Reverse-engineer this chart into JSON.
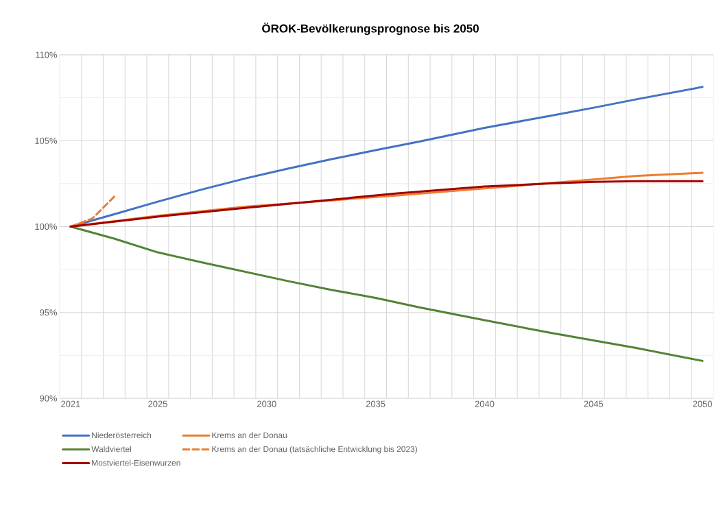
{
  "chart_data": {
    "type": "line",
    "title": "ÖROK-Bevölkerungsprognose bis 2050",
    "xlim": [
      2020.5,
      2050.5
    ],
    "ylim": [
      90,
      110
    ],
    "xticks": [
      2021,
      {
        "value": 2021.5,
        "label": null
      },
      {
        "value": 2022.5,
        "label": null
      },
      {
        "value": 2023.5,
        "label": null
      },
      {
        "value": 2024.5,
        "label": null
      },
      2025,
      {
        "value": 2025.5,
        "label": null
      },
      {
        "value": 2026.5,
        "label": null
      },
      {
        "value": 2027.5,
        "label": null
      },
      {
        "value": 2028.5,
        "label": null
      },
      {
        "value": 2029.5,
        "label": null
      },
      2030,
      {
        "value": 2030.5,
        "label": null
      },
      {
        "value": 2031.5,
        "label": null
      },
      {
        "value": 2032.5,
        "label": null
      },
      {
        "value": 2033.5,
        "label": null
      },
      {
        "value": 2034.5,
        "label": null
      },
      2035,
      {
        "value": 2035.5,
        "label": null
      },
      {
        "value": 2036.5,
        "label": null
      },
      {
        "value": 2037.5,
        "label": null
      },
      {
        "value": 2038.5,
        "label": null
      },
      {
        "value": 2039.5,
        "label": null
      },
      2040,
      {
        "value": 2040.5,
        "label": null
      },
      {
        "value": 2041.5,
        "label": null
      },
      {
        "value": 2042.5,
        "label": null
      },
      {
        "value": 2043.5,
        "label": null
      },
      {
        "value": 2044.5,
        "label": null
      },
      2045,
      {
        "value": 2045.5,
        "label": null
      },
      {
        "value": 2046.5,
        "label": null
      },
      {
        "value": 2047.5,
        "label": null
      },
      {
        "value": 2048.5,
        "label": null
      },
      {
        "value": 2049.5,
        "label": null
      },
      2050
    ],
    "yticks": [
      {
        "value": 90,
        "label": "90%"
      },
      {
        "value": 92.5,
        "label": null
      },
      {
        "value": 95,
        "label": "95%"
      },
      {
        "value": 97.5,
        "label": null
      },
      {
        "value": 100,
        "label": "100%"
      },
      {
        "value": 102.5,
        "label": null
      },
      {
        "value": 105,
        "label": "105%"
      },
      {
        "value": 107.5,
        "label": null
      },
      {
        "value": 110,
        "label": "110%"
      }
    ],
    "grid": true,
    "legend": "bottom",
    "marker": "none",
    "series": [
      {
        "name": "Niederösterreich",
        "color": "#4472c4",
        "x": [
          2021,
          2023,
          2025,
          2027,
          2029,
          2031,
          2033,
          2035,
          2037,
          2040,
          2043,
          2045,
          2047,
          2050
        ],
        "values": [
          100,
          100.72,
          101.45,
          102.15,
          102.8,
          103.38,
          103.93,
          104.45,
          104.95,
          105.75,
          106.45,
          106.92,
          107.42,
          108.13
        ]
      },
      {
        "name": "Krems an der Donau",
        "color": "#ed7d31",
        "x": [
          2021,
          2025,
          2029,
          2033,
          2036,
          2040,
          2043,
          2045,
          2047,
          2050
        ],
        "values": [
          100,
          100.63,
          101.16,
          101.53,
          101.82,
          102.22,
          102.53,
          102.74,
          102.95,
          103.13
        ]
      },
      {
        "name": "Waldviertel",
        "color": "#548235",
        "x": [
          2021,
          2023,
          2025,
          2027,
          2029,
          2031,
          2033,
          2035,
          2037,
          2040,
          2043,
          2045,
          2047,
          2050
        ],
        "values": [
          100,
          99.3,
          98.5,
          97.92,
          97.37,
          96.82,
          96.31,
          95.85,
          95.3,
          94.55,
          93.82,
          93.37,
          92.92,
          92.18
        ]
      },
      {
        "name": "Krems an der Donau (tatsächliche Entwicklung bis 2023)",
        "color": "#ed7d31",
        "line_style": "dashed",
        "x": [
          2021,
          2022,
          2023
        ],
        "values": [
          100,
          100.47,
          101.74
        ]
      },
      {
        "name": "Mostviertel-Eisenwurzen",
        "color": "#a00000",
        "x": [
          2021,
          2025,
          2029,
          2033,
          2036,
          2040,
          2043,
          2045,
          2047,
          2050
        ],
        "values": [
          100,
          100.58,
          101.09,
          101.57,
          101.94,
          102.33,
          102.51,
          102.6,
          102.64,
          102.64
        ]
      }
    ]
  }
}
